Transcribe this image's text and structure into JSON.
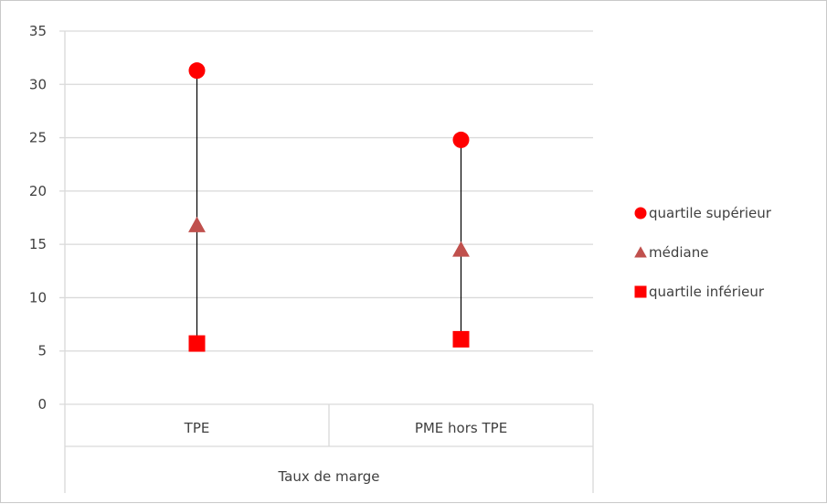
{
  "chart_data": {
    "type": "scatter",
    "title": "",
    "xlabel": "",
    "ylabel": "",
    "group_label": "Taux de marge",
    "categories": [
      "TPE",
      "PME hors TPE"
    ],
    "ylim": [
      0,
      35
    ],
    "yticks": [
      0,
      5,
      10,
      15,
      20,
      25,
      30,
      35
    ],
    "grid": true,
    "legend_position": "right",
    "series": [
      {
        "name": "quartile supérieur",
        "marker": "circle",
        "color": "#ff0000",
        "values": [
          31.3,
          24.8
        ]
      },
      {
        "name": "médiane",
        "marker": "triangle",
        "color": "#c0504d",
        "values": [
          16.8,
          14.5
        ]
      },
      {
        "name": "quartile inférieur",
        "marker": "square",
        "color": "#ff0000",
        "values": [
          5.7,
          6.1
        ]
      }
    ],
    "range_line_color": "#000000"
  }
}
